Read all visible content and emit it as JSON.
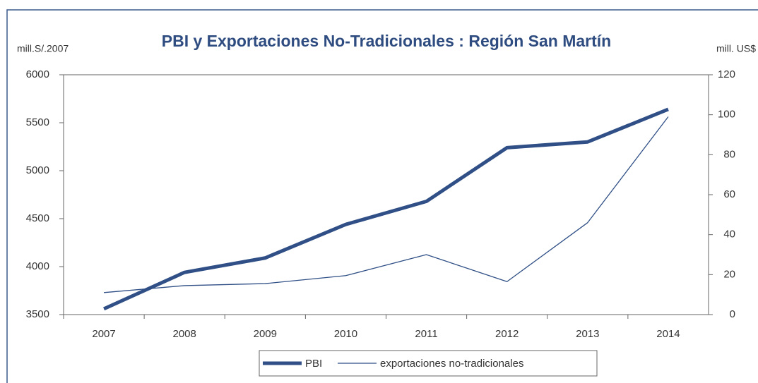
{
  "chart_data": {
    "type": "line",
    "title": "PBI y Exportaciones No-Tradicionales : Región San Martín",
    "y_label": "mill.S/.2007",
    "y2_label": "mill. US$",
    "categories": [
      "2007",
      "2008",
      "2009",
      "2010",
      "2011",
      "2012",
      "2013",
      "2014"
    ],
    "series": [
      {
        "name": "PBI",
        "color": "#2f4f86",
        "width": 5,
        "values": [
          3560,
          3940,
          4090,
          4440,
          4680,
          5240,
          5300,
          5640
        ]
      },
      {
        "name": "exportaciones no-tradicionales",
        "color": "#2f4f86",
        "width": 1.3,
        "axis": "y2",
        "values": [
          11,
          14.5,
          15.5,
          19.5,
          30,
          16.5,
          46,
          99
        ]
      }
    ],
    "ylim": [
      3500,
      6000
    ],
    "yticks": [
      3500,
      4000,
      4500,
      5000,
      5500,
      6000
    ],
    "y2lim": [
      0,
      120
    ],
    "y2ticks": [
      0,
      20,
      40,
      60,
      80,
      100,
      120
    ],
    "legend": "bottom"
  }
}
